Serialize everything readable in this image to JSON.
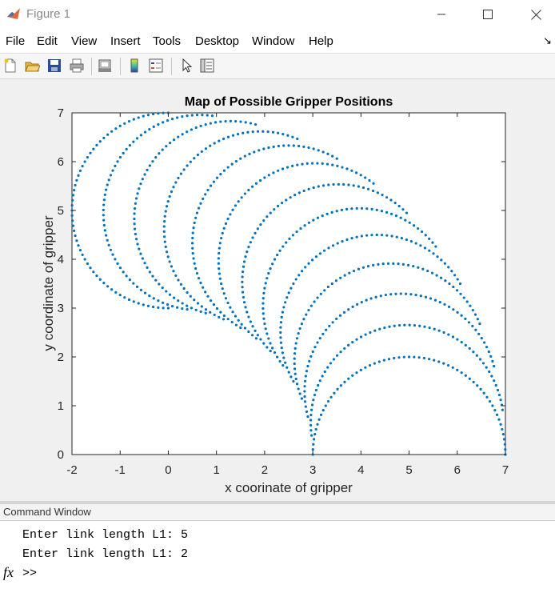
{
  "window": {
    "title": "Figure 1"
  },
  "menu": [
    "File",
    "Edit",
    "View",
    "Insert",
    "Tools",
    "Desktop",
    "Window",
    "Help"
  ],
  "toolbar": {
    "icons": [
      "new-figure-icon",
      "open-file-icon",
      "save-icon",
      "print-icon",
      "print-preview-icon",
      "colorbar-icon",
      "legend-icon",
      "pointer-icon",
      "property-inspector-icon"
    ]
  },
  "chart_data": {
    "type": "scatter",
    "title": "Map of Possible Gripper Positions",
    "xlabel": "x coorinate of gripper",
    "ylabel": "y coordinate of gripper",
    "xlim": [
      -2,
      7
    ],
    "ylim": [
      0,
      7
    ],
    "xticks": [
      "-2",
      "-1",
      "0",
      "1",
      "2",
      "3",
      "4",
      "5",
      "6",
      "7"
    ],
    "yticks": [
      "0",
      "1",
      "2",
      "3",
      "4",
      "5",
      "6",
      "7"
    ],
    "grid": false,
    "color": "#0072BD",
    "series": [
      {
        "generator": "two_link_arm",
        "L1": 5,
        "L2": 2,
        "theta1_deg": [
          0,
          90,
          7.5
        ],
        "theta2_deg": [
          0,
          180,
          3
        ]
      }
    ]
  },
  "command_window": {
    "title": "Command Window",
    "lines": [
      "Enter link length L1: 5",
      "Enter link length L1: 2"
    ],
    "prompt": ">>",
    "fx_label": "fx"
  }
}
